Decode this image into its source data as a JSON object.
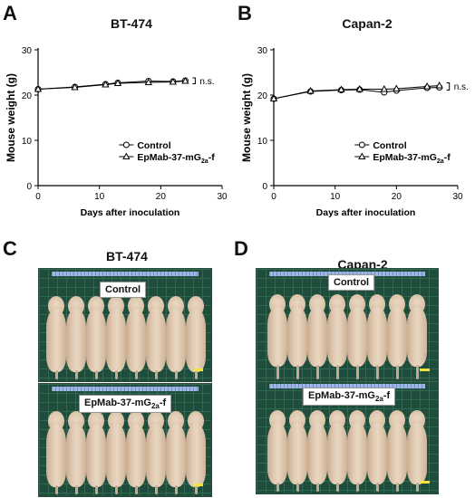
{
  "panels": {
    "A": {
      "letter": "A",
      "title": "BT-474"
    },
    "B": {
      "letter": "B",
      "title": "Capan-2"
    },
    "C": {
      "letter": "C",
      "title": "BT-474"
    },
    "D": {
      "letter": "D",
      "title": "Capan-2"
    }
  },
  "significance": "n.s.",
  "photo_labels": {
    "C": {
      "top": "Control",
      "bottom_prefix": "EpMab-37-mG",
      "bottom_sub": "2a",
      "bottom_suffix": "-f"
    },
    "D": {
      "top": "Control",
      "bottom_prefix": "EpMab-37-mG",
      "bottom_sub": "2a",
      "bottom_suffix": "-f"
    }
  },
  "colors": {
    "green_mat": "#1f4d3c",
    "scale_bar": "#f4e33a",
    "ruler": "#8aa6e0"
  },
  "chart_data": [
    {
      "type": "line",
      "title": "BT-474",
      "xlabel": "Days after inoculation",
      "ylabel": "Mouse weight (g)",
      "xlim": [
        0,
        30
      ],
      "ylim": [
        0,
        30
      ],
      "xticks": [
        0,
        10,
        20,
        30
      ],
      "yticks": [
        0,
        10,
        20,
        30
      ],
      "legend": "center-right",
      "series": [
        {
          "name": "Control",
          "marker": "circle",
          "x": [
            0,
            6,
            11,
            13,
            18,
            22,
            24
          ],
          "y": [
            21.3,
            21.8,
            22.4,
            22.7,
            23.1,
            23.0,
            23.2
          ]
        },
        {
          "name_prefix": "EpMab-37-mG",
          "name_sub": "2a",
          "name_suffix": "-f",
          "marker": "triangle",
          "x": [
            0,
            6,
            11,
            13,
            18,
            22,
            24
          ],
          "y": [
            21.3,
            21.7,
            22.3,
            22.6,
            22.8,
            22.9,
            23.1
          ]
        }
      ]
    },
    {
      "type": "line",
      "title": "Capan-2",
      "xlabel": "Days after inoculation",
      "ylabel": "Mouse weight (g)",
      "xlim": [
        0,
        30
      ],
      "ylim": [
        0,
        30
      ],
      "xticks": [
        0,
        10,
        20,
        30
      ],
      "yticks": [
        0,
        10,
        20,
        30
      ],
      "legend": "center-right",
      "series": [
        {
          "name": "Control",
          "marker": "circle",
          "x": [
            0,
            6,
            11,
            14,
            18,
            20,
            25,
            27
          ],
          "y": [
            19.2,
            20.8,
            21.1,
            21.2,
            20.6,
            21.0,
            21.6,
            21.7
          ]
        },
        {
          "name_prefix": "EpMab-37-mG",
          "name_sub": "2a",
          "name_suffix": "-f",
          "marker": "triangle",
          "x": [
            0,
            6,
            11,
            14,
            18,
            20,
            25,
            27
          ],
          "y": [
            19.2,
            20.9,
            21.2,
            21.3,
            21.3,
            21.4,
            21.9,
            22.1
          ]
        }
      ]
    }
  ]
}
